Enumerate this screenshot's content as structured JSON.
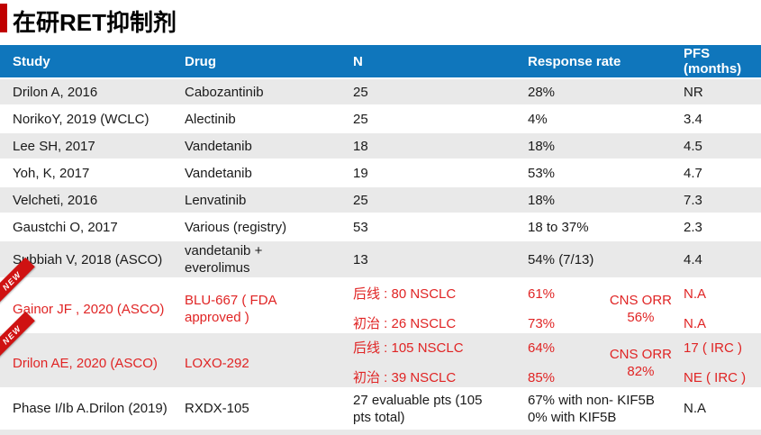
{
  "title": "在研RET抑制剂",
  "colors": {
    "header_bg": "#0f76bc",
    "row_stripe": "#e9e9e9",
    "highlight_red": "#e02424",
    "ribbon_red": "#cf1212",
    "accent_red": "#c00000"
  },
  "table": {
    "headers": {
      "study": "Study",
      "drug": "Drug",
      "n": "N",
      "response": "Response rate",
      "pfs": "PFS\n(months)"
    },
    "rows": [
      {
        "study": "Drilon A, 2016",
        "drug": "Cabozantinib",
        "n": "25",
        "response": "28%",
        "pfs": "NR"
      },
      {
        "study": "NorikoY, 2019 (WCLC)",
        "drug": "Alectinib",
        "n": "25",
        "response": "4%",
        "pfs": "3.4"
      },
      {
        "study": "Lee SH, 2017",
        "drug": "Vandetanib",
        "n": "18",
        "response": "18%",
        "pfs": "4.5"
      },
      {
        "study": "Yoh, K, 2017",
        "drug": "Vandetanib",
        "n": "19",
        "response": "53%",
        "pfs": "4.7"
      },
      {
        "study": "Velcheti, 2016",
        "drug": "Lenvatinib",
        "n": "25",
        "response": "18%",
        "pfs": "7.3"
      },
      {
        "study": "Gaustchi O, 2017",
        "drug": "Various (registry)",
        "n": "53",
        "response": "18 to 37%",
        "pfs": "2.3"
      },
      {
        "study": "Subbiah V, 2018 (ASCO)",
        "drug": "vandetanib +\neverolimus",
        "n": "13",
        "response": "54% (7/13)",
        "pfs": "4.4"
      },
      {
        "study": "Gainor JF , 2020 (ASCO)",
        "drug": "BLU-667 ( FDA\napproved )",
        "n": "后线 : 80 NSCLC\n初治 : 26 NSCLC",
        "response": "61%\n73%",
        "cns_note": "CNS ORR\n56%",
        "pfs": "N.A\nN.A",
        "badge": "NEW"
      },
      {
        "study": "Drilon AE, 2020 (ASCO)",
        "drug": "LOXO-292",
        "n": "后线 : 105 NSCLC\n初治 : 39 NSCLC",
        "response": "64%\n85%",
        "cns_note": "CNS ORR\n82%",
        "pfs": "17 ( IRC )\nNE ( IRC )",
        "badge": "NEW"
      },
      {
        "study": "Phase I/Ib A.Drilon (2019)",
        "drug": "RXDX-105",
        "n": "27 evaluable pts (105\npts total)",
        "response": "67% with non- KIF5B\n0% with KIF5B",
        "pfs": "N.A"
      }
    ]
  }
}
